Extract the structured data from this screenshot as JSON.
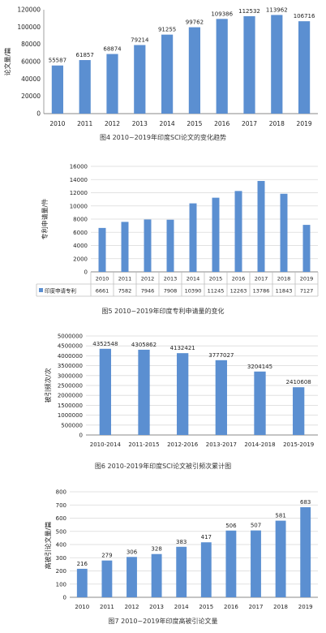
{
  "colors": {
    "bar": "#5b8fd1",
    "axis": "#888888",
    "grid": "#d9d9d9",
    "text": "#222222"
  },
  "chart_data": [
    {
      "type": "bar",
      "title": "",
      "caption": "图4  2010~2019年印度SCI论文的变化趋势",
      "ylabel": "论文量/篇",
      "xlabel": "",
      "categories": [
        "2010",
        "2011",
        "2012",
        "2013",
        "2014",
        "2015",
        "2016",
        "2017",
        "2018",
        "2019"
      ],
      "values": [
        55587,
        61857,
        68874,
        79214,
        91255,
        99762,
        109386,
        112532,
        113962,
        106716
      ],
      "ylim": [
        0,
        120000
      ],
      "yticks": [
        0,
        20000,
        40000,
        60000,
        80000,
        100000,
        120000
      ],
      "grid": false,
      "data_labels": true
    },
    {
      "type": "bar",
      "title": "",
      "caption": "图5  2010~2019年印度专利申请量的变化",
      "ylabel": "专利申请量/件",
      "xlabel": "",
      "categories": [
        "2010",
        "2011",
        "2012",
        "2013",
        "2014",
        "2015",
        "2016",
        "2017",
        "2018",
        "2019"
      ],
      "series": [
        {
          "name": "印度申请专利",
          "values": [
            6661,
            7582,
            7946,
            7908,
            10390,
            11245,
            12263,
            13786,
            11843,
            7127
          ]
        }
      ],
      "ylim": [
        0,
        16000
      ],
      "yticks": [
        0,
        2000,
        4000,
        6000,
        8000,
        10000,
        12000,
        14000,
        16000
      ],
      "grid": true,
      "data_table": true
    },
    {
      "type": "bar",
      "title": "",
      "caption": "图6  2010-2019年印度SCI论文被引频次累计图",
      "ylabel": "被引频次/次",
      "xlabel": "",
      "categories": [
        "2010-2014",
        "2011-2015",
        "2012-2016",
        "2013-2017",
        "2014-2018",
        "2015-2019"
      ],
      "values": [
        4352548,
        4305862,
        4132421,
        3777027,
        3204145,
        2410608
      ],
      "ylim": [
        0,
        5000000
      ],
      "yticks": [
        0,
        500000,
        1000000,
        1500000,
        2000000,
        2500000,
        3000000,
        3500000,
        4000000,
        4500000,
        5000000
      ],
      "grid": true,
      "data_labels": true
    },
    {
      "type": "bar",
      "title": "",
      "caption": "图7  2010~2019年印度高被引论文量",
      "ylabel": "高被引论文量/篇",
      "xlabel": "",
      "categories": [
        "2010",
        "2011",
        "2012",
        "2013",
        "2014",
        "2015",
        "2016",
        "2017",
        "2018",
        "2019"
      ],
      "values": [
        216,
        279,
        306,
        328,
        383,
        417,
        506,
        507,
        581,
        683
      ],
      "ylim": [
        0,
        800
      ],
      "yticks": [
        0,
        100,
        200,
        300,
        400,
        500,
        600,
        700,
        800
      ],
      "grid": true,
      "data_labels": true
    }
  ]
}
